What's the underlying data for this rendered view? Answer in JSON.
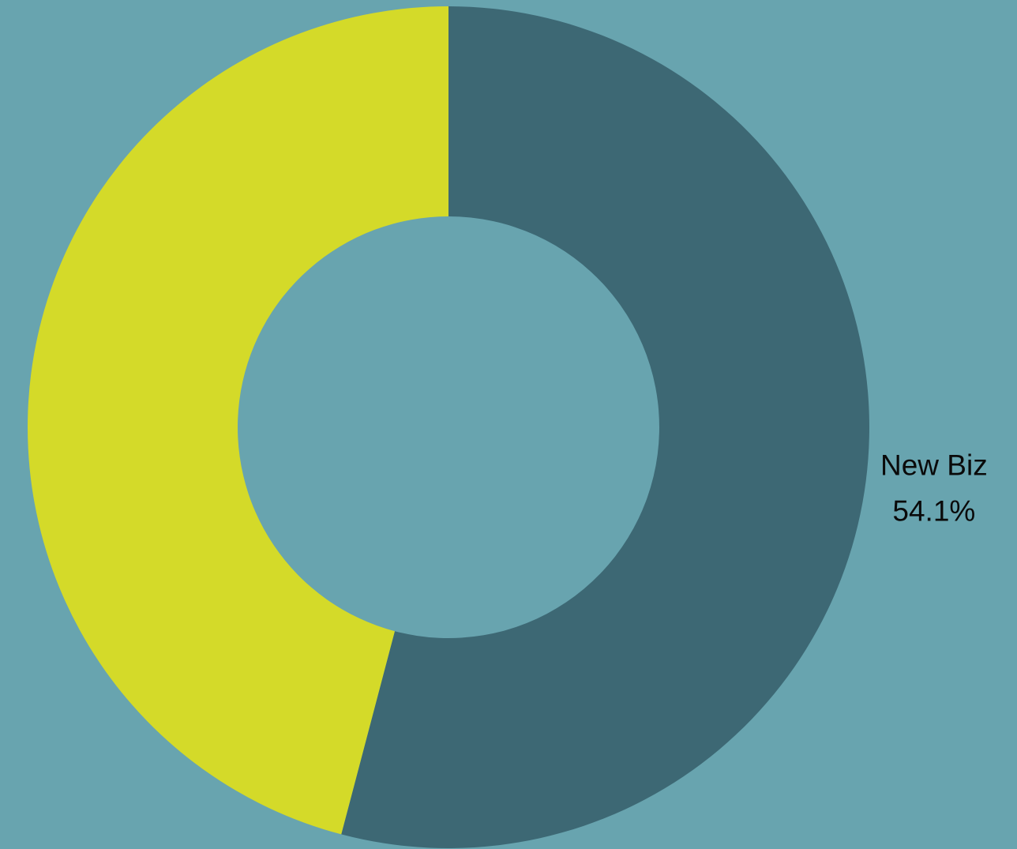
{
  "chart_data": {
    "type": "donut",
    "categories": [
      "New Biz",
      null
    ],
    "values": [
      54.1,
      45.9
    ],
    "value_labels": [
      "54.1%",
      null
    ],
    "colors": [
      "#3d6874",
      "#d4da29"
    ]
  }
}
